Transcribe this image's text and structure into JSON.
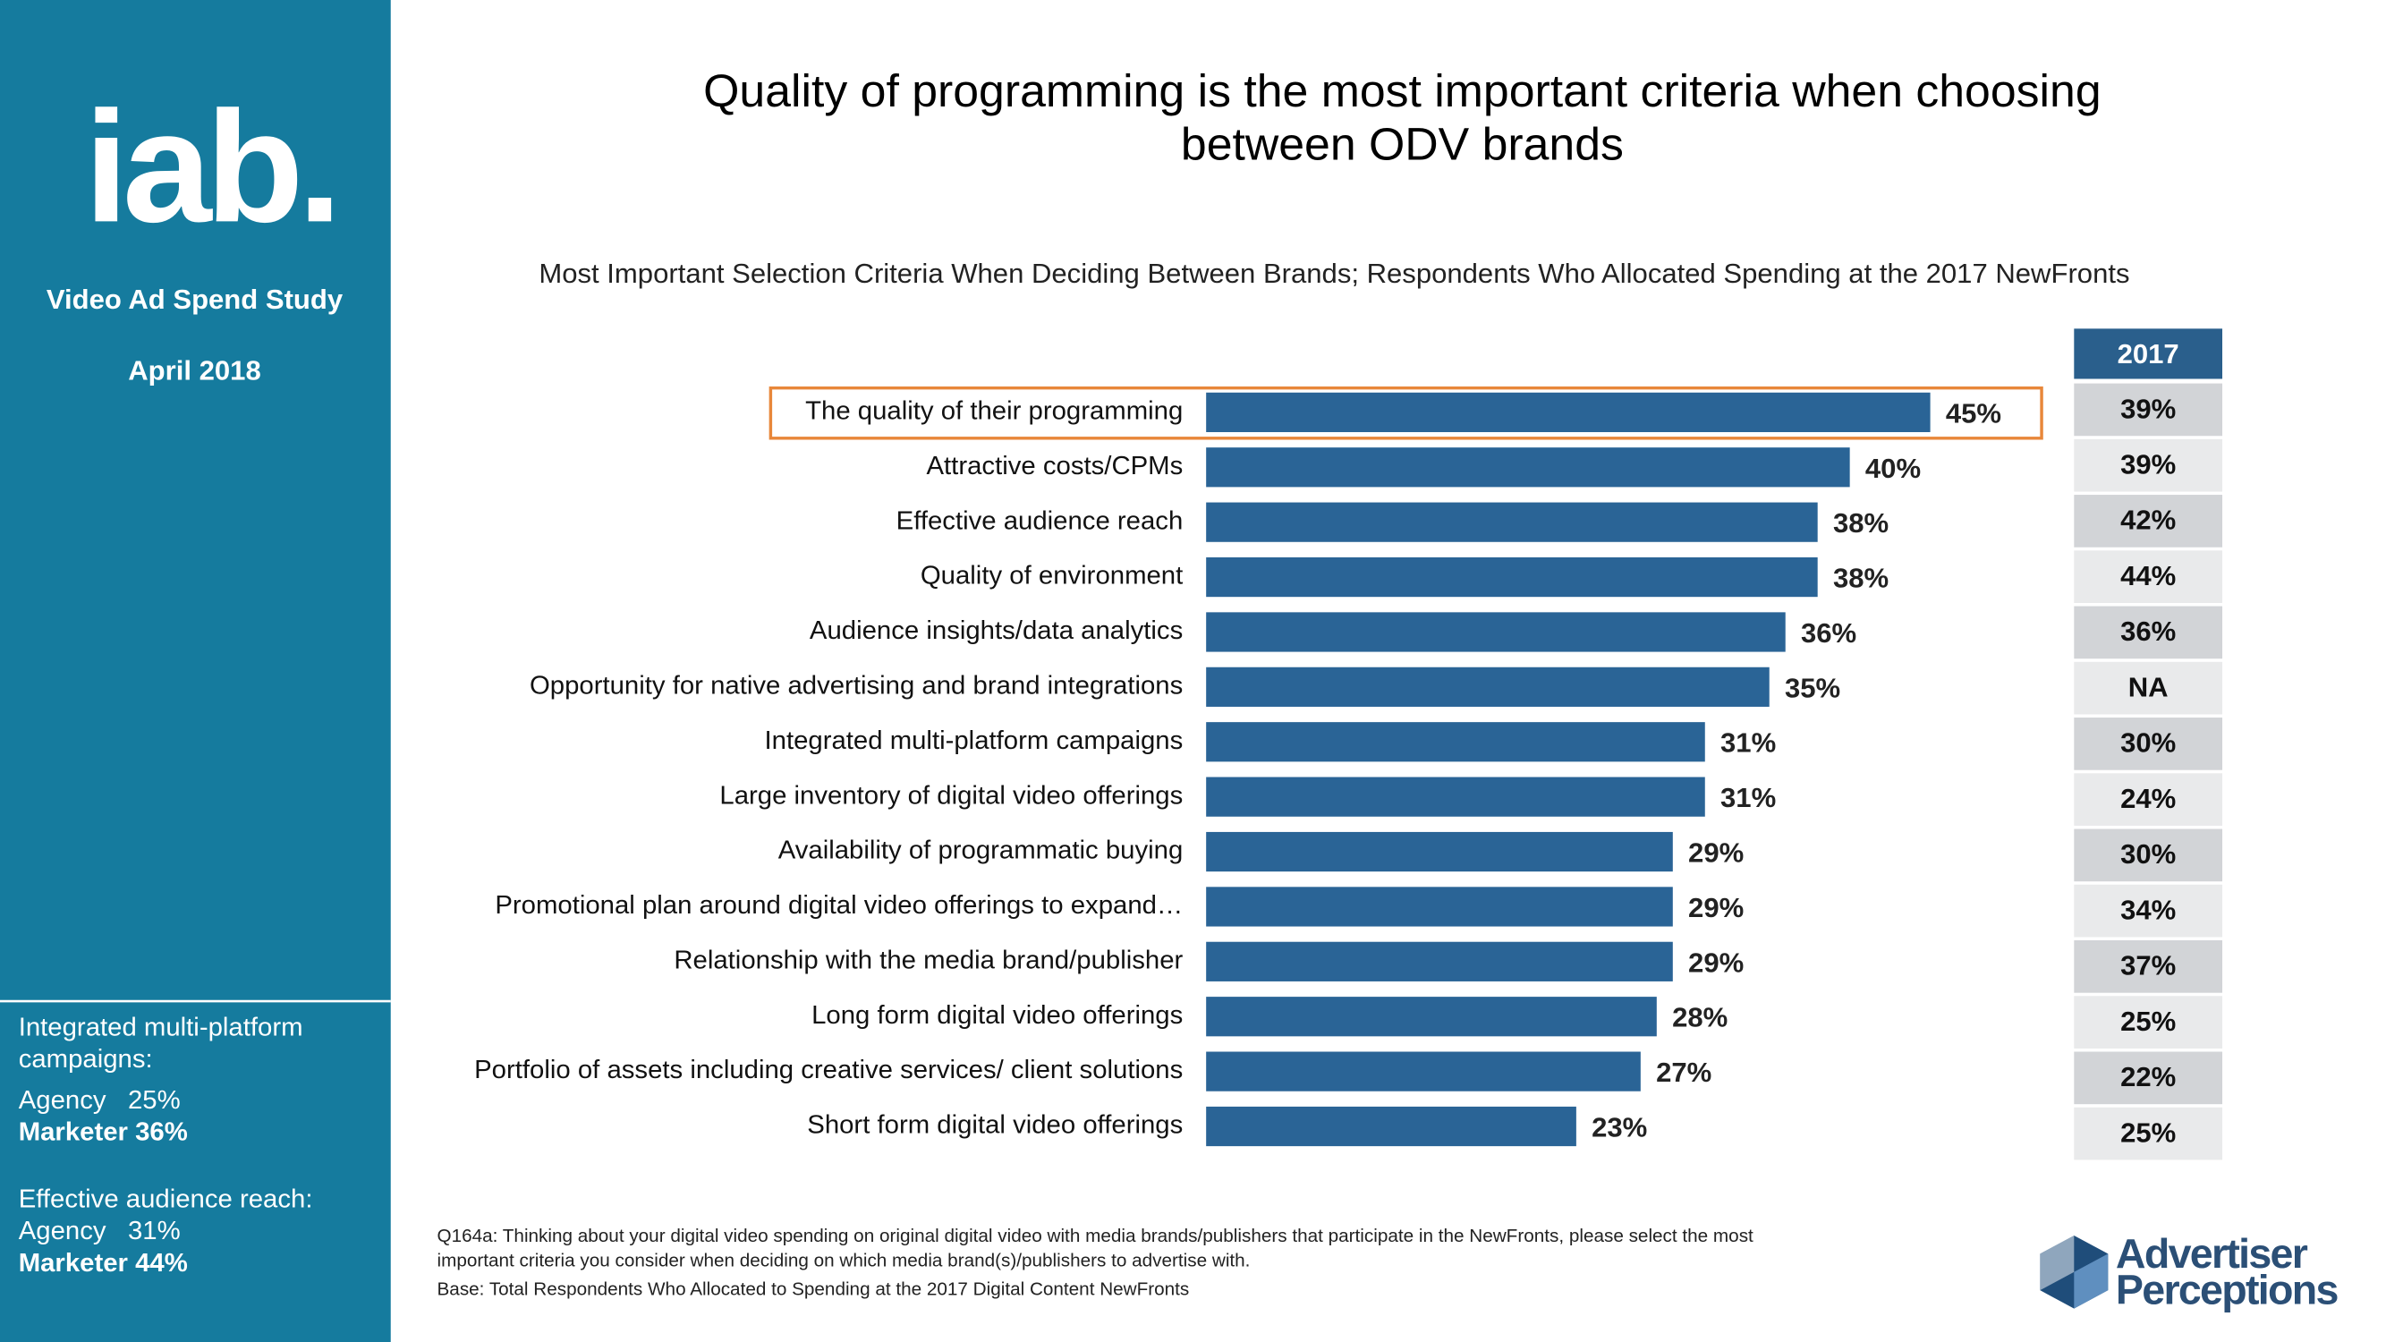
{
  "chart_data": {
    "type": "bar",
    "orientation": "horizontal",
    "title": "Quality of programming is the most important criteria when choosing between ODV brands",
    "subtitle": "Most Important Selection Criteria When Deciding Between Brands; Respondents Who Allocated Spending at the 2017 NewFronts",
    "categories": [
      "The quality of their programming",
      "Attractive costs/CPMs",
      "Effective audience reach",
      "Quality of environment",
      "Audience insights/data analytics",
      "Opportunity for native advertising and brand integrations",
      "Integrated multi-platform campaigns",
      "Large inventory of digital video offerings",
      "Availability of programmatic buying",
      "Promotional plan around digital video offerings to expand…",
      "Relationship with the media brand/publisher",
      "Long form digital video offerings",
      "Portfolio of assets including creative services/ client solutions",
      "Short form digital video offerings"
    ],
    "values": [
      45,
      40,
      38,
      38,
      36,
      35,
      31,
      31,
      29,
      29,
      29,
      28,
      27,
      23
    ],
    "value_labels": [
      "45%",
      "40%",
      "38%",
      "38%",
      "36%",
      "35%",
      "31%",
      "31%",
      "29%",
      "29%",
      "29%",
      "28%",
      "27%",
      "23%"
    ],
    "color": "#2a6496",
    "xlim": [
      0,
      50
    ]
  },
  "comparison": {
    "header": "2017",
    "values": [
      "39%",
      "39%",
      "42%",
      "44%",
      "36%",
      "NA",
      "30%",
      "24%",
      "30%",
      "34%",
      "37%",
      "25%",
      "22%",
      "25%"
    ]
  },
  "sidebar": {
    "logo": "iab.",
    "study": "Video Ad Spend Study",
    "date": "April 2018",
    "notes": [
      "Integrated multi-platform",
      "campaigns:",
      "Agency   25%",
      "Marketer 36%",
      "Effective audience reach:",
      "Agency   31%",
      "Marketer 44%"
    ]
  },
  "footnotes": [
    "Q164a: Thinking about your digital video spending on original digital video with media brands/publishers that participate in the NewFronts, please select the most",
    "important criteria you consider when deciding on which media brand(s)/publishers to advertise with.",
    "Base: Total Respondents Who Allocated to Spending at the 2017 Digital Content NewFronts"
  ],
  "brand": [
    "Advertiser",
    "Perceptions"
  ]
}
